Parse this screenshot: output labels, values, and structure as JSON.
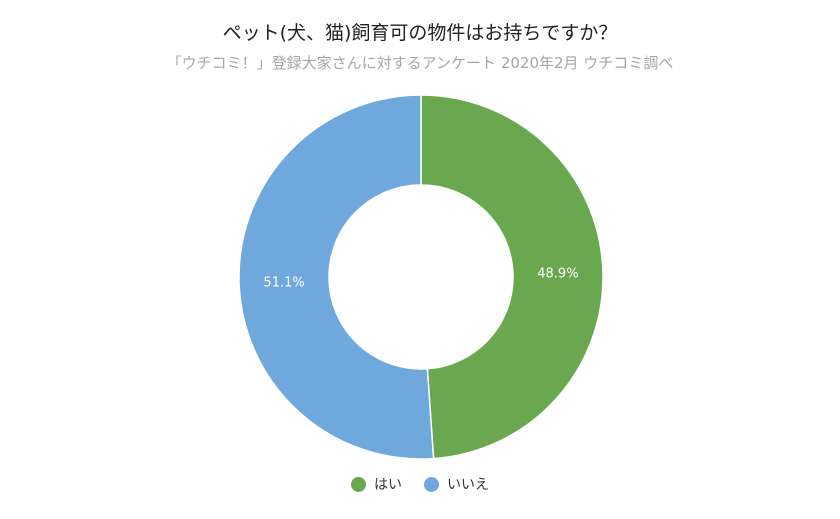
{
  "chart_data": {
    "type": "pie",
    "title": "ペット(犬、猫)飼育可の物件はお持ちですか？",
    "subtitle": "「ウチコミ！」登録大家さんに対するアンケート 2020年2月 ウチコミ調べ",
    "categories": [
      "はい",
      "いいえ"
    ],
    "values": [
      48.9,
      51.1
    ],
    "value_labels": [
      "48.9%",
      "51.1%"
    ],
    "colors": [
      "#6aa84f",
      "#6fa8dc"
    ],
    "donut": true,
    "legend": "bottom"
  }
}
